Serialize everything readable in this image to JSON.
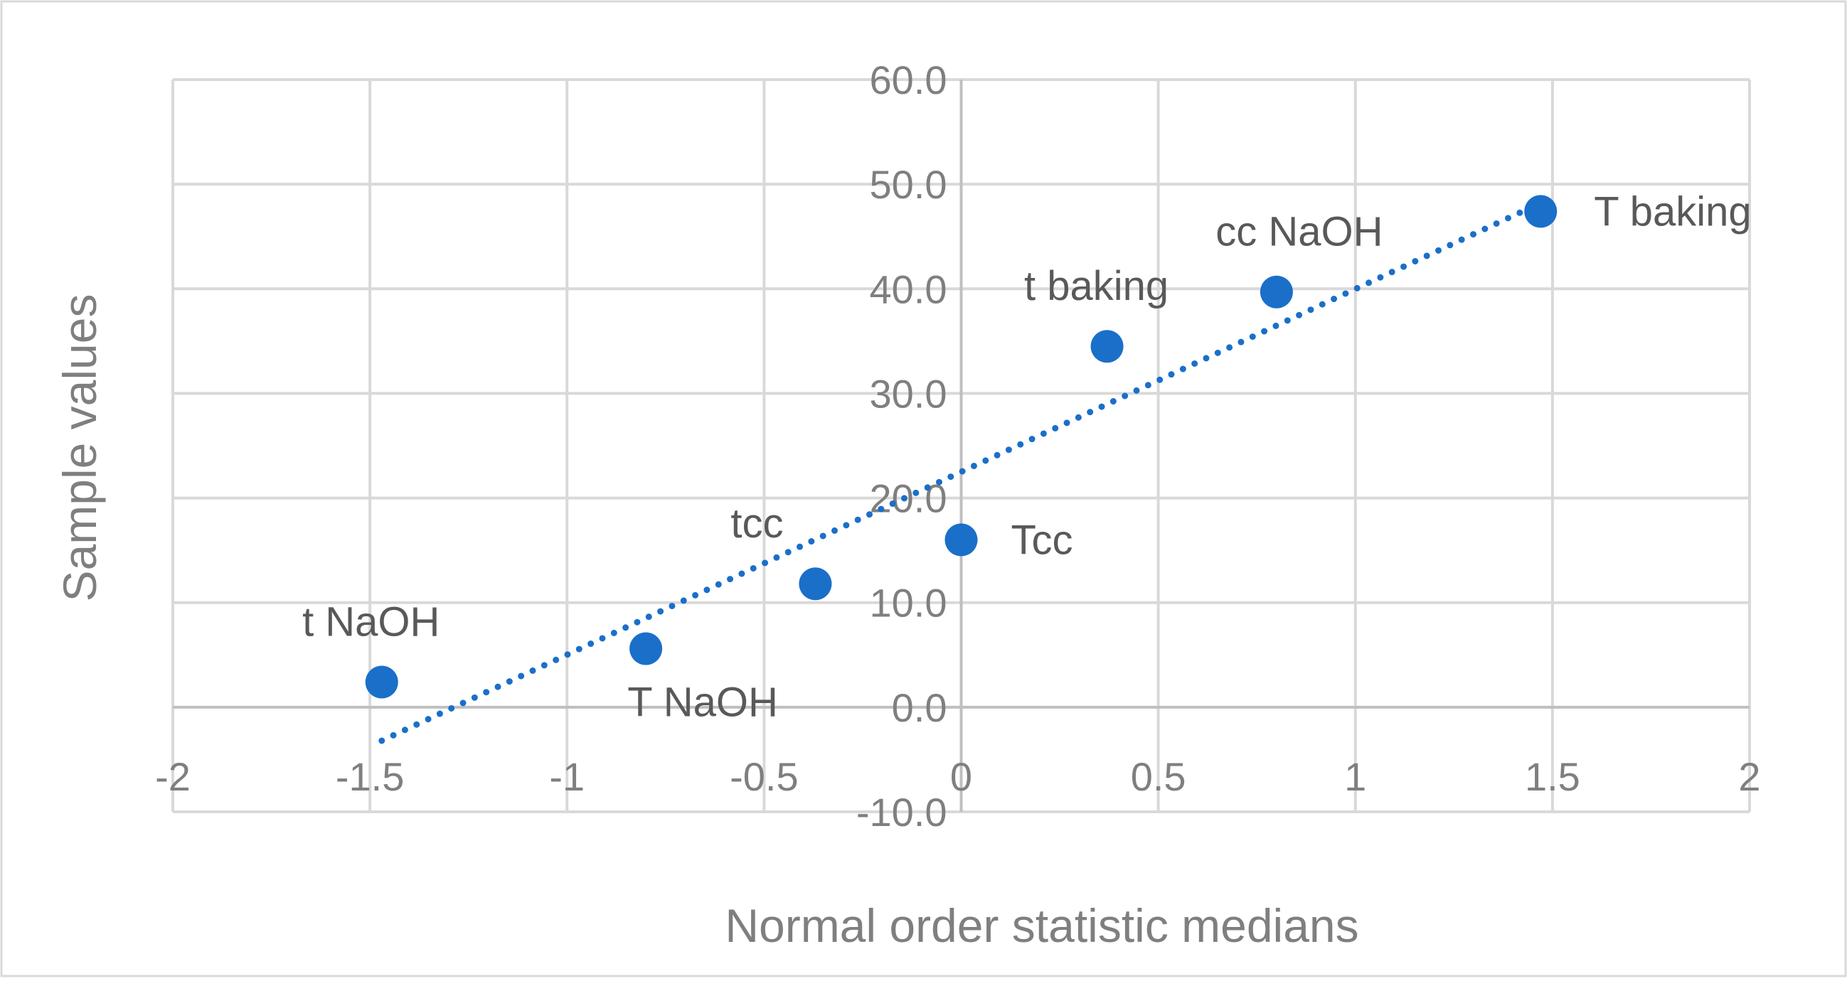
{
  "chart_data": {
    "type": "scatter",
    "title": "",
    "xlabel": "Normal order statistic medians",
    "ylabel": "Sample values",
    "xlim": [
      -2,
      2
    ],
    "ylim": [
      -10,
      60
    ],
    "x_ticks": [
      -2,
      -1.5,
      -1,
      -0.5,
      0,
      0.5,
      1,
      1.5,
      2
    ],
    "x_tick_labels": [
      "-2",
      "-1.5",
      "-1",
      "-0.5",
      "0",
      "0.5",
      "1",
      "1.5",
      "2"
    ],
    "y_ticks": [
      -10,
      0,
      10,
      20,
      30,
      40,
      50,
      60
    ],
    "y_tick_labels": [
      "-10.0",
      "0.0",
      "10.0",
      "20.0",
      "30.0",
      "40.0",
      "50.0",
      "60.0"
    ],
    "grid": true,
    "points": [
      {
        "label": "t NaOH",
        "x": -1.47,
        "y": 2.4
      },
      {
        "label": "T NaOH",
        "x": -0.8,
        "y": 5.6
      },
      {
        "label": "tcc",
        "x": -0.37,
        "y": 11.8
      },
      {
        "label": "Tcc",
        "x": 0.0,
        "y": 16.0
      },
      {
        "label": "t baking",
        "x": 0.37,
        "y": 34.5
      },
      {
        "label": "cc NaOH",
        "x": 0.8,
        "y": 39.7
      },
      {
        "label": "T baking",
        "x": 1.47,
        "y": 47.4
      }
    ],
    "trendline": {
      "style": "dotted",
      "x_start": -1.47,
      "y_start": -3.2,
      "x_end": 1.47,
      "y_end": 48.2
    },
    "colors": {
      "point": "#1a6fc9",
      "trendline": "#1a6fc9",
      "grid": "#d9d9d9",
      "axis": "#bfbfbf",
      "frame": "#d9d9d9"
    }
  }
}
